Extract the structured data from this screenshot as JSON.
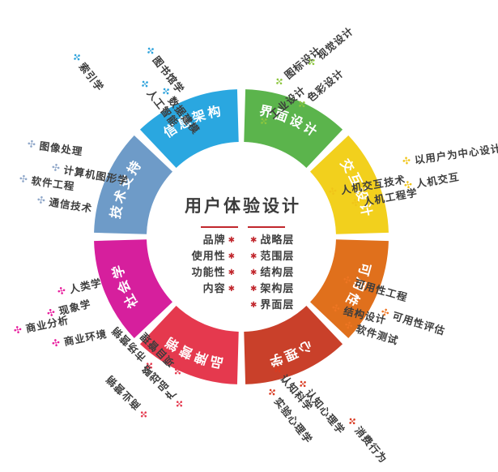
{
  "diagram_title": "用户体验设计",
  "center": {
    "title": "用户体验设计",
    "accent_color": "#c1272d",
    "asterisk_glyph": "✱",
    "left_items": [
      "品牌",
      "使用性",
      "功能性",
      "内容"
    ],
    "right_items": [
      "战略层",
      "范围层",
      "结构层",
      "架构层",
      "界面层"
    ]
  },
  "wheel": {
    "segments": [
      {
        "id": "interface-design",
        "label": "界面设计",
        "color": "#5bb44c"
      },
      {
        "id": "interaction-design",
        "label": "交互设计",
        "color": "#f2d01d"
      },
      {
        "id": "usability",
        "label": "可用性",
        "color": "#e0701c"
      },
      {
        "id": "psychology",
        "label": "心理学",
        "color": "#c9402a"
      },
      {
        "id": "brand-marketing",
        "label": "品牌营销",
        "color": "#e5394e"
      },
      {
        "id": "sociology",
        "label": "社会学",
        "color": "#d61f9d"
      },
      {
        "id": "tech-support",
        "label": "技术支持",
        "color": "#6e9bc8"
      },
      {
        "id": "information-architecture",
        "label": "信息架构",
        "color": "#2aa7e0"
      }
    ]
  },
  "asterisk_icon_glyph": "✣",
  "clusters": [
    {
      "id": "information-architecture",
      "color": "#2fa3dc",
      "items": [
        "索引学",
        "图书馆学",
        "人工智能",
        "数据建模"
      ]
    },
    {
      "id": "interface-design",
      "color": "#8dc63f",
      "items": [
        "工业设计",
        "图标设计",
        "视觉设计",
        "色彩设计"
      ]
    },
    {
      "id": "interaction-design",
      "color": "#f0c419",
      "items": [
        "以用户为中心设计",
        "人机交互技术",
        "人机交互",
        "人机工程学"
      ]
    },
    {
      "id": "usability",
      "color": "#ee7623",
      "items": [
        "可用性工程",
        "结构设计",
        "可用性评估",
        "软件测试"
      ]
    },
    {
      "id": "psychology",
      "color": "#d93a21",
      "items": [
        "认知科学",
        "认知心理学",
        "实验心理学",
        "消费行为"
      ]
    },
    {
      "id": "brand-marketing",
      "color": "#e5394e",
      "items": [
        "市场营销",
        "项目管理",
        "产品战略",
        "商业营销"
      ]
    },
    {
      "id": "sociology",
      "color": "#e81c9d",
      "items": [
        "人类学",
        "现象学",
        "商业分析",
        "商业环境"
      ]
    },
    {
      "id": "tech-support",
      "color": "#8fa7c9",
      "items": [
        "图像处理",
        "计算机图形学",
        "软件工程",
        "通信技术"
      ]
    }
  ]
}
